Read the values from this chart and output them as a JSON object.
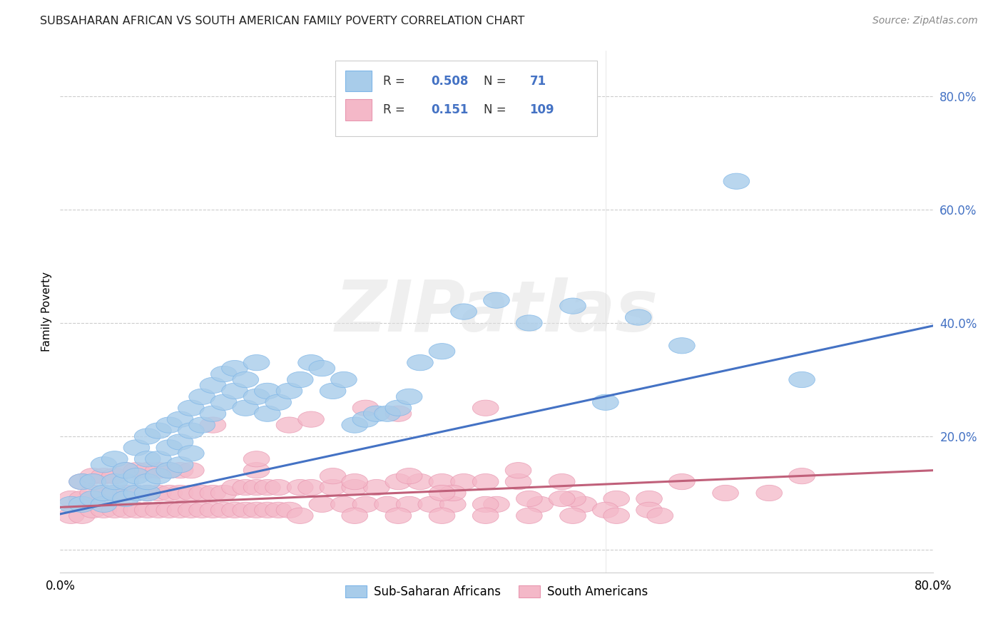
{
  "title": "SUBSAHARAN AFRICAN VS SOUTH AMERICAN FAMILY POVERTY CORRELATION CHART",
  "source": "Source: ZipAtlas.com",
  "ylabel": "Family Poverty",
  "legend_label_1": "Sub-Saharan Africans",
  "legend_label_2": "South Americans",
  "R1": "0.508",
  "N1": "71",
  "R2": "0.151",
  "N2": "109",
  "color_blue": "#A8CCEA",
  "color_blue_edge": "#7EB6E8",
  "color_pink": "#F4B8C8",
  "color_pink_edge": "#E896B0",
  "color_line_blue": "#4472C4",
  "color_line_pink": "#C0607A",
  "color_rn_text": "#4472C4",
  "watermark": "ZIPatlas",
  "xlim": [
    0.0,
    0.8
  ],
  "ylim": [
    -0.04,
    0.88
  ],
  "yticks": [
    0.0,
    0.2,
    0.4,
    0.6,
    0.8
  ],
  "ytick_labels": [
    "",
    "20.0%",
    "40.0%",
    "60.0%",
    "80.0%"
  ],
  "blue_line_x": [
    0.0,
    0.8
  ],
  "blue_line_y": [
    0.063,
    0.395
  ],
  "pink_line_x": [
    0.0,
    0.8
  ],
  "pink_line_y": [
    0.075,
    0.14
  ],
  "blue_x": [
    0.01,
    0.02,
    0.02,
    0.03,
    0.03,
    0.04,
    0.04,
    0.04,
    0.05,
    0.05,
    0.05,
    0.06,
    0.06,
    0.06,
    0.07,
    0.07,
    0.07,
    0.08,
    0.08,
    0.08,
    0.08,
    0.09,
    0.09,
    0.09,
    0.1,
    0.1,
    0.1,
    0.11,
    0.11,
    0.11,
    0.12,
    0.12,
    0.12,
    0.13,
    0.13,
    0.14,
    0.14,
    0.15,
    0.15,
    0.16,
    0.16,
    0.17,
    0.17,
    0.18,
    0.18,
    0.19,
    0.19,
    0.2,
    0.21,
    0.22,
    0.23,
    0.24,
    0.25,
    0.26,
    0.27,
    0.28,
    0.29,
    0.3,
    0.31,
    0.32,
    0.33,
    0.35,
    0.37,
    0.4,
    0.43,
    0.47,
    0.5,
    0.53,
    0.57,
    0.62,
    0.68
  ],
  "blue_y": [
    0.08,
    0.08,
    0.12,
    0.09,
    0.12,
    0.08,
    0.1,
    0.15,
    0.1,
    0.12,
    0.16,
    0.09,
    0.12,
    0.14,
    0.1,
    0.13,
    0.18,
    0.1,
    0.12,
    0.16,
    0.2,
    0.13,
    0.16,
    0.21,
    0.14,
    0.18,
    0.22,
    0.15,
    0.19,
    0.23,
    0.17,
    0.21,
    0.25,
    0.22,
    0.27,
    0.24,
    0.29,
    0.26,
    0.31,
    0.28,
    0.32,
    0.25,
    0.3,
    0.27,
    0.33,
    0.24,
    0.28,
    0.26,
    0.28,
    0.3,
    0.33,
    0.32,
    0.28,
    0.3,
    0.22,
    0.23,
    0.24,
    0.24,
    0.25,
    0.27,
    0.33,
    0.35,
    0.42,
    0.44,
    0.4,
    0.43,
    0.26,
    0.41,
    0.36,
    0.65,
    0.3
  ],
  "pink_x": [
    0.01,
    0.01,
    0.02,
    0.02,
    0.02,
    0.03,
    0.03,
    0.03,
    0.04,
    0.04,
    0.04,
    0.05,
    0.05,
    0.05,
    0.06,
    0.06,
    0.06,
    0.07,
    0.07,
    0.07,
    0.08,
    0.08,
    0.08,
    0.09,
    0.09,
    0.09,
    0.1,
    0.1,
    0.1,
    0.11,
    0.11,
    0.11,
    0.12,
    0.12,
    0.12,
    0.13,
    0.13,
    0.14,
    0.14,
    0.15,
    0.15,
    0.16,
    0.16,
    0.17,
    0.17,
    0.18,
    0.18,
    0.19,
    0.19,
    0.2,
    0.2,
    0.21,
    0.22,
    0.23,
    0.24,
    0.25,
    0.26,
    0.27,
    0.28,
    0.29,
    0.3,
    0.31,
    0.32,
    0.33,
    0.34,
    0.35,
    0.36,
    0.37,
    0.39,
    0.4,
    0.42,
    0.44,
    0.46,
    0.48,
    0.51,
    0.54,
    0.57,
    0.61,
    0.65,
    0.68,
    0.14,
    0.18,
    0.21,
    0.25,
    0.28,
    0.32,
    0.36,
    0.39,
    0.43,
    0.47,
    0.18,
    0.23,
    0.27,
    0.31,
    0.35,
    0.39,
    0.42,
    0.46,
    0.5,
    0.54,
    0.22,
    0.27,
    0.31,
    0.35,
    0.39,
    0.43,
    0.47,
    0.51,
    0.55
  ],
  "pink_y": [
    0.06,
    0.09,
    0.06,
    0.09,
    0.12,
    0.07,
    0.1,
    0.13,
    0.07,
    0.1,
    0.13,
    0.07,
    0.1,
    0.13,
    0.07,
    0.1,
    0.14,
    0.07,
    0.1,
    0.14,
    0.07,
    0.1,
    0.14,
    0.07,
    0.1,
    0.14,
    0.07,
    0.1,
    0.14,
    0.07,
    0.1,
    0.14,
    0.07,
    0.1,
    0.14,
    0.07,
    0.1,
    0.07,
    0.1,
    0.07,
    0.1,
    0.07,
    0.11,
    0.07,
    0.11,
    0.07,
    0.11,
    0.07,
    0.11,
    0.07,
    0.11,
    0.07,
    0.11,
    0.11,
    0.08,
    0.11,
    0.08,
    0.11,
    0.08,
    0.11,
    0.08,
    0.12,
    0.08,
    0.12,
    0.08,
    0.12,
    0.08,
    0.12,
    0.12,
    0.08,
    0.12,
    0.08,
    0.12,
    0.08,
    0.09,
    0.09,
    0.12,
    0.1,
    0.1,
    0.13,
    0.22,
    0.14,
    0.22,
    0.13,
    0.25,
    0.13,
    0.1,
    0.25,
    0.09,
    0.09,
    0.16,
    0.23,
    0.12,
    0.24,
    0.1,
    0.08,
    0.14,
    0.09,
    0.07,
    0.07,
    0.06,
    0.06,
    0.06,
    0.06,
    0.06,
    0.06,
    0.06,
    0.06,
    0.06
  ]
}
